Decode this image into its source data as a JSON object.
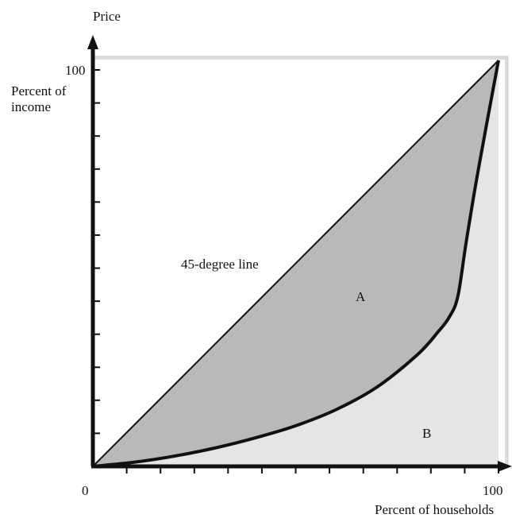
{
  "figure": {
    "top_label": "Price",
    "y_axis_label": "Percent of income",
    "y_max_label": "100",
    "x_axis_label": "Percent of households",
    "x_max_label": "100",
    "origin_label": "0",
    "equality_line_label": "45-degree line",
    "region_a_label": "A",
    "region_b_label": "B"
  },
  "colors": {
    "axis": "#111111",
    "region_a_fill": "#b9b9bc",
    "region_b_fill": "#e5e5e6",
    "curve": "#111111"
  },
  "chart_data": {
    "type": "area",
    "x_range": [
      0,
      100
    ],
    "y_range": [
      0,
      100
    ],
    "grid": false,
    "equality_line": {
      "x": [
        0,
        100
      ],
      "y": [
        0,
        100
      ]
    },
    "lorenz_curve": {
      "x": [
        0,
        10,
        20,
        30,
        40,
        50,
        60,
        70,
        80,
        85,
        88,
        90,
        92,
        95,
        100
      ],
      "y": [
        0,
        1,
        2.5,
        4.5,
        7,
        10,
        14,
        19.5,
        27.5,
        33,
        37,
        42,
        55,
        73,
        100
      ]
    },
    "x_ticks": 12,
    "y_ticks": 12
  }
}
